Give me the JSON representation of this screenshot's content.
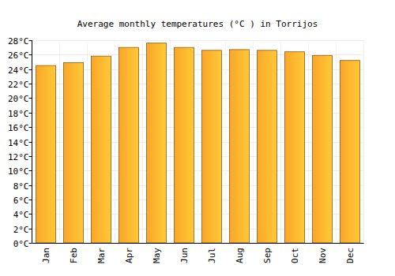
{
  "chart_data": {
    "type": "bar",
    "title": "Average monthly temperatures (°C ) in Torrijos",
    "categories": [
      "Jan",
      "Feb",
      "Mar",
      "Apr",
      "May",
      "Jun",
      "Jul",
      "Aug",
      "Sep",
      "Oct",
      "Nov",
      "Dec"
    ],
    "values": [
      24.5,
      24.9,
      25.8,
      27.0,
      27.6,
      27.0,
      26.6,
      26.7,
      26.6,
      26.4,
      25.9,
      25.2
    ],
    "color": "#fba628",
    "ylim": [
      0,
      28
    ],
    "yticks": [
      {
        "value": 0,
        "label": "0°C"
      },
      {
        "value": 2,
        "label": "2°C"
      },
      {
        "value": 4,
        "label": "4°C"
      },
      {
        "value": 6,
        "label": "6°C"
      },
      {
        "value": 8,
        "label": "8°C"
      },
      {
        "value": 10,
        "label": "10°C"
      },
      {
        "value": 12,
        "label": "12°C"
      },
      {
        "value": 14,
        "label": "14°C"
      },
      {
        "value": 16,
        "label": "16°C"
      },
      {
        "value": 18,
        "label": "18°C"
      },
      {
        "value": 20,
        "label": "20°C"
      },
      {
        "value": 22,
        "label": "22°C"
      },
      {
        "value": 24,
        "label": "24°C"
      },
      {
        "value": 26,
        "label": "26°C"
      },
      {
        "value": 28,
        "label": "28°C"
      }
    ],
    "grid": true
  }
}
